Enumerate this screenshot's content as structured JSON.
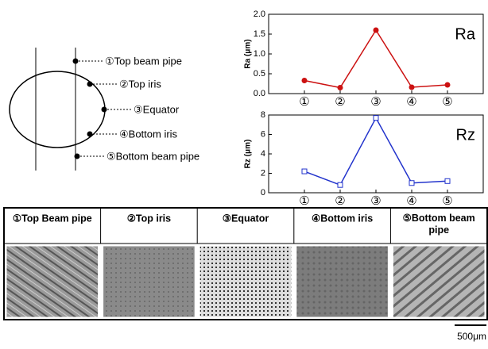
{
  "diagram": {
    "labels": [
      "①Top beam pipe",
      "②Top iris",
      "③Equator",
      "④Bottom iris",
      "⑤Bottom beam pipe"
    ]
  },
  "chart_data": [
    {
      "type": "line",
      "annotation": "Ra",
      "y_label": "Ra (μm)",
      "categories": [
        "①",
        "②",
        "③",
        "④",
        "⑤"
      ],
      "values": [
        0.33,
        0.15,
        1.6,
        0.16,
        0.22
      ],
      "color": "#cc1111",
      "marker": "circle",
      "ylim": [
        0,
        2
      ],
      "yticks": [
        {
          "value": 0,
          "label": "0.0"
        },
        {
          "value": 0.5,
          "label": "0.5"
        },
        {
          "value": 1,
          "label": "1.0"
        },
        {
          "value": 1.5,
          "label": "1.5"
        },
        {
          "value": 2,
          "label": "2.0"
        }
      ]
    },
    {
      "type": "line",
      "annotation": "Rz",
      "y_label": "Rz (μm)",
      "categories": [
        "①",
        "②",
        "③",
        "④",
        "⑤"
      ],
      "values": [
        2.2,
        0.8,
        7.7,
        1.0,
        1.2
      ],
      "color": "#2233cc",
      "marker": "square",
      "ylim": [
        0,
        8
      ],
      "yticks": [
        0,
        2,
        4,
        6,
        8
      ]
    }
  ],
  "table": {
    "headers": [
      "①Top Beam pipe",
      "②Top iris",
      "③Equator",
      "④Bottom iris",
      "⑤Bottom beam pipe"
    ]
  },
  "scale_bar": "500μm"
}
